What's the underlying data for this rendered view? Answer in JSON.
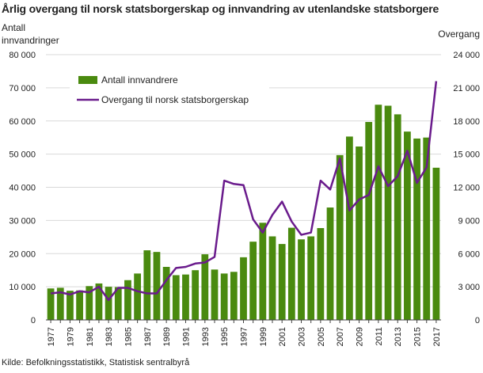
{
  "chart_data": {
    "type": "bar+line",
    "title": "Årlig overgang til norsk statsborgerskap  og innvandring av utenlandske statsborgere",
    "ylabel_left": [
      "Antall",
      "innvandringer"
    ],
    "ylabel_right": "Overgang",
    "source": "Kilde: Befolkningsstatistikk, Statistisk sentralbyrå",
    "ylim_left": [
      0,
      80000
    ],
    "ylim_right": [
      0,
      24000
    ],
    "yticks_left": [
      "0",
      "10 000",
      "20 000",
      "30 000",
      "40 000",
      "50 000",
      "60 000",
      "70 000",
      "80 000"
    ],
    "yticks_right": [
      "0",
      "3 000",
      "6 000",
      "9 000",
      "12 000",
      "15 000",
      "18 000",
      "21 000",
      "24 000"
    ],
    "years": [
      1977,
      1978,
      1979,
      1980,
      1981,
      1982,
      1983,
      1984,
      1985,
      1986,
      1987,
      1988,
      1989,
      1990,
      1991,
      1992,
      1993,
      1994,
      1995,
      1996,
      1997,
      1998,
      1999,
      2000,
      2001,
      2002,
      2003,
      2004,
      2005,
      2006,
      2007,
      2008,
      2009,
      2010,
      2011,
      2012,
      2013,
      2014,
      2015,
      2016,
      2017
    ],
    "xtick_labels": [
      "1977",
      "1979",
      "1981",
      "1983",
      "1985",
      "1987",
      "1989",
      "1991",
      "1993",
      "1995",
      "1997",
      "1999",
      "2001",
      "2003",
      "2005",
      "2007",
      "2009",
      "2011",
      "2013",
      "2015",
      "2017"
    ],
    "series": [
      {
        "name": "Antall innvandrere",
        "kind": "bar",
        "axis": "left",
        "color": "#4a8a0f",
        "values": [
          9500,
          9700,
          8800,
          8900,
          10200,
          11000,
          10000,
          9900,
          12000,
          14000,
          21000,
          20500,
          16000,
          13500,
          13700,
          15000,
          19800,
          15200,
          14000,
          14500,
          18900,
          23600,
          29300,
          25200,
          22900,
          27800,
          24300,
          25200,
          27700,
          33900,
          49700,
          55300,
          52300,
          59700,
          64900,
          64600,
          62000,
          56800,
          54700,
          55000,
          45900
        ]
      },
      {
        "name": "Overgang til norsk statsborgerskap",
        "kind": "line",
        "axis": "right",
        "color": "#6a1b8c",
        "values": [
          2400,
          2500,
          2300,
          2600,
          2500,
          3000,
          1800,
          2900,
          2900,
          2600,
          2400,
          2400,
          3600,
          4700,
          4800,
          5100,
          5200,
          5700,
          12600,
          12300,
          12200,
          9100,
          7900,
          9500,
          10700,
          8900,
          7700,
          7900,
          12600,
          11800,
          14600,
          9900,
          10900,
          11300,
          13900,
          12100,
          13000,
          15300,
          12400,
          13800,
          21600
        ]
      }
    ],
    "legend_position": "top-left"
  }
}
